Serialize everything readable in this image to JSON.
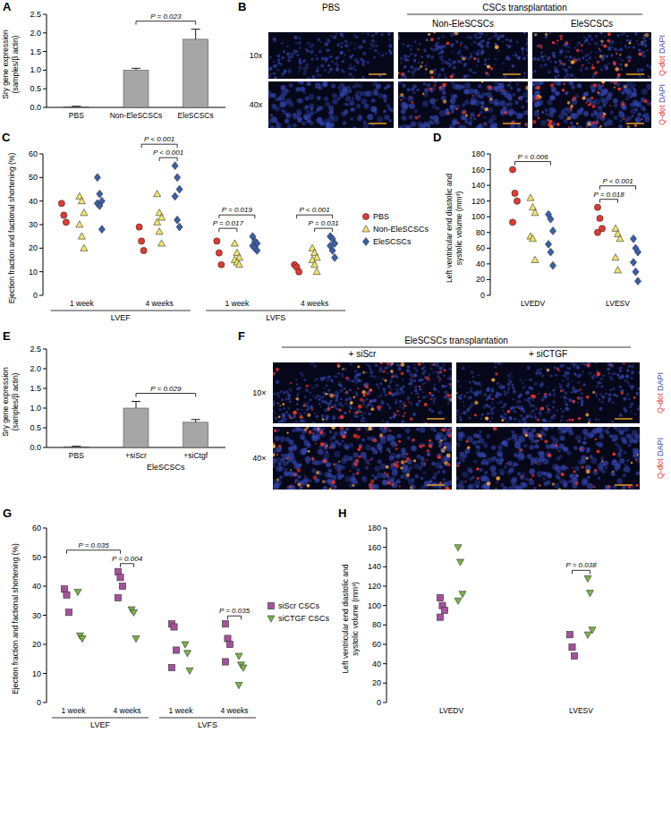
{
  "chart_data": [
    {
      "type": "bar",
      "label": "A",
      "y_label": [
        "Sry gene expression",
        "(samples/β actin)"
      ],
      "categories": [
        "PBS",
        "Non-EleSCSCs",
        "EleSCSCs"
      ],
      "values": [
        0.02,
        1.0,
        1.83
      ],
      "errors": [
        0.01,
        0.05,
        0.27
      ],
      "color": "#a6a6a6",
      "ylim": [
        0,
        2.5
      ],
      "yticks": [
        {
          "value": 0,
          "label": "0.0"
        },
        0.5,
        {
          "value": 1,
          "label": "1.0"
        },
        1.5,
        {
          "value": 2,
          "label": "2.0"
        },
        2.5
      ],
      "annotations": [
        {
          "text": "P = 0.023",
          "from": 1,
          "to": 2
        }
      ]
    },
    {
      "type": "image",
      "label": "B",
      "columns": [
        "PBS",
        "Non-EleSCSCs",
        "EleSCSCs"
      ],
      "column_groups": [
        {
          "name": "CSCs transplantation",
          "columns": [
            1,
            2
          ]
        }
      ],
      "rows": [
        "10x",
        "40x"
      ],
      "channels": [
        {
          "text": "Q-dot",
          "color": "#e8322a"
        },
        {
          "text": "DAPI",
          "color": "#3048b8"
        }
      ]
    },
    {
      "type": "strip",
      "label": "C",
      "y_label": "Ejection fraction and factional shortening (%)",
      "categories": [
        "1 week",
        "4 weeks",
        "1 week",
        "4 weeks"
      ],
      "groups": [
        {
          "name": "LVEF",
          "categories": [
            0,
            1
          ]
        },
        {
          "name": "LVFS",
          "categories": [
            2,
            3
          ]
        }
      ],
      "ylim": [
        0,
        60
      ],
      "yticks": [
        0,
        10,
        20,
        30,
        40,
        50,
        60
      ],
      "legend": "right",
      "series": [
        {
          "name": "PBS",
          "color": "#e03a30",
          "marker": "circle",
          "values": [
            [
              39,
              34,
              31
            ],
            [
              29,
              23,
              19
            ],
            [
              23,
              18,
              13
            ],
            [
              13,
              12,
              10
            ]
          ]
        },
        {
          "name": "Non-EleSCSCs",
          "color": "#f2e468",
          "marker": "triangle",
          "values": [
            [
              42,
              40,
              35,
              30,
              25,
              20
            ],
            [
              43,
              35,
              33,
              31,
              27,
              22
            ],
            [
              22,
              18,
              16,
              15,
              14,
              13
            ],
            [
              20,
              18,
              16,
              15,
              13,
              10
            ]
          ]
        },
        {
          "name": "EleSCSCs",
          "color": "#3a5ea8",
          "marker": "diamond",
          "values": [
            [
              50,
              43,
              40,
              39,
              38,
              28
            ],
            [
              55,
              50,
              45,
              42,
              32,
              29
            ],
            [
              25,
              23,
              22,
              21,
              20,
              19
            ],
            [
              25,
              24,
              22,
              21,
              19,
              16
            ]
          ]
        }
      ],
      "annotations": [
        {
          "text": "P < 0.001",
          "from": [
            1,
            1
          ],
          "to": [
            1,
            2
          ]
        },
        {
          "text": "P < 0.001",
          "from": [
            1,
            0
          ],
          "to": [
            1,
            2
          ]
        },
        {
          "text": "P = 0.017",
          "from": [
            2,
            0
          ],
          "to": [
            2,
            1
          ]
        },
        {
          "text": "P = 0.019",
          "from": [
            2,
            0
          ],
          "to": [
            2,
            2
          ]
        },
        {
          "text": "P = 0.031",
          "from": [
            3,
            1
          ],
          "to": [
            3,
            2
          ]
        },
        {
          "text": "P < 0.001",
          "from": [
            3,
            0
          ],
          "to": [
            3,
            2
          ]
        }
      ]
    },
    {
      "type": "strip",
      "label": "D",
      "y_label": [
        "Left ventricular end diastolic and",
        "systolic volume (mm³)"
      ],
      "categories": [
        "LVEDV",
        "LVESV"
      ],
      "ylim": [
        0,
        180
      ],
      "yticks": [
        0,
        20,
        40,
        60,
        80,
        100,
        120,
        140,
        160,
        180
      ],
      "series": [
        {
          "name": "PBS",
          "color": "#e03a30",
          "marker": "circle",
          "values": [
            [
              160,
              130,
              120,
              93
            ],
            [
              112,
              98,
              85,
              80
            ]
          ]
        },
        {
          "name": "Non-EleSCSCs",
          "color": "#f2e468",
          "marker": "triangle",
          "values": [
            [
              124,
              112,
              105,
              75,
              72,
              45
            ],
            [
              85,
              78,
              72,
              48,
              32
            ]
          ]
        },
        {
          "name": "EleSCSCs",
          "color": "#3a5ea8",
          "marker": "diamond",
          "values": [
            [
              103,
              97,
              82,
              65,
              55,
              38
            ],
            [
              72,
              60,
              55,
              42,
              30,
              18
            ]
          ]
        }
      ],
      "annotations": [
        {
          "text": "P = 0.006",
          "from": [
            0,
            0
          ],
          "to": [
            0,
            2
          ]
        },
        {
          "text": "P = 0.018",
          "from": [
            1,
            0
          ],
          "to": [
            1,
            1
          ]
        },
        {
          "text": "P < 0.001",
          "from": [
            1,
            0
          ],
          "to": [
            1,
            2
          ]
        }
      ]
    },
    {
      "type": "bar",
      "label": "E",
      "y_label": [
        "Sry gene expression",
        "(samples/β actin)"
      ],
      "categories": [
        "PBS",
        "+siScr",
        "+siCtgf"
      ],
      "values": [
        0.02,
        1.0,
        0.64
      ],
      "errors": [
        0.01,
        0.17,
        0.07
      ],
      "groups": [
        {
          "name": "EleSCSCs",
          "categories": [
            1,
            2
          ]
        }
      ],
      "color": "#a6a6a6",
      "ylim": [
        0,
        2.5
      ],
      "yticks": [
        {
          "value": 0,
          "label": "0.0"
        },
        0.5,
        {
          "value": 1,
          "label": "1.0"
        },
        1.5,
        {
          "value": 2,
          "label": "2.0"
        },
        2.5
      ],
      "annotations": [
        {
          "text": "P = 0.029",
          "from": 1,
          "to": 2
        }
      ]
    },
    {
      "type": "image",
      "label": "F",
      "columns": [
        "+ siScr",
        "+ siCTGF"
      ],
      "column_groups": [
        {
          "name": "EleSCSCs transplantation",
          "columns": [
            0,
            1
          ]
        }
      ],
      "rows": [
        "10×",
        "40×"
      ],
      "channels": [
        {
          "text": "Q-dot",
          "color": "#e8322a"
        },
        {
          "text": "DAPI",
          "color": "#3048b8"
        }
      ]
    },
    {
      "type": "strip",
      "label": "G",
      "y_label": "Ejection fraction and factional shortening (%)",
      "categories": [
        "1 week",
        "4 weeks",
        "1 week",
        "4 weeks"
      ],
      "groups": [
        {
          "name": "LVEF",
          "categories": [
            0,
            1
          ]
        },
        {
          "name": "LVFS",
          "categories": [
            2,
            3
          ]
        }
      ],
      "ylim": [
        0,
        60
      ],
      "yticks": [
        0,
        10,
        20,
        30,
        40,
        50,
        60
      ],
      "legend": "right",
      "series": [
        {
          "name": "siScr  CSCs",
          "color": "#a4529e",
          "marker": "square",
          "values": [
            [
              39,
              37,
              31
            ],
            [
              45,
              43,
              40,
              36
            ],
            [
              27,
              26,
              18,
              12
            ],
            [
              27,
              22,
              20,
              14
            ]
          ]
        },
        {
          "name": "siCTGF CSCs",
          "color": "#78b447",
          "marker": "triangle-down",
          "values": [
            [
              38,
              23,
              22
            ],
            [
              32,
              31,
              22
            ],
            [
              20,
              17,
              11
            ],
            [
              16,
              13,
              12,
              6
            ]
          ]
        }
      ],
      "annotations": [
        {
          "text": "P = 0.004",
          "from": [
            1,
            0
          ],
          "to": [
            1,
            1
          ]
        },
        {
          "text": "P = 0.035",
          "from": [
            0,
            0
          ],
          "to": [
            1,
            0
          ]
        },
        {
          "text": "P = 0.035",
          "from": [
            3,
            0
          ],
          "to": [
            3,
            1
          ]
        }
      ]
    },
    {
      "type": "strip",
      "label": "H",
      "y_label": [
        "Left ventricular end diastolic and",
        "systolic volume (mm³)"
      ],
      "categories": [
        "LVEDV",
        "LVESV"
      ],
      "ylim": [
        0,
        180
      ],
      "yticks": [
        0,
        20,
        40,
        60,
        80,
        100,
        120,
        140,
        160,
        180
      ],
      "series": [
        {
          "name": "siScr  CSCs",
          "color": "#a4529e",
          "marker": "square",
          "values": [
            [
              108,
              100,
              95,
              88
            ],
            [
              70,
              57,
              48
            ]
          ]
        },
        {
          "name": "siCTGF CSCs",
          "color": "#78b447",
          "marker": "triangle-down",
          "values": [
            [
              160,
              145,
              112,
              105
            ],
            [
              128,
              113,
              75,
              70
            ]
          ]
        }
      ],
      "annotations": [
        {
          "text": "P = 0.038",
          "from": [
            1,
            0
          ],
          "to": [
            1,
            1
          ]
        }
      ]
    }
  ]
}
